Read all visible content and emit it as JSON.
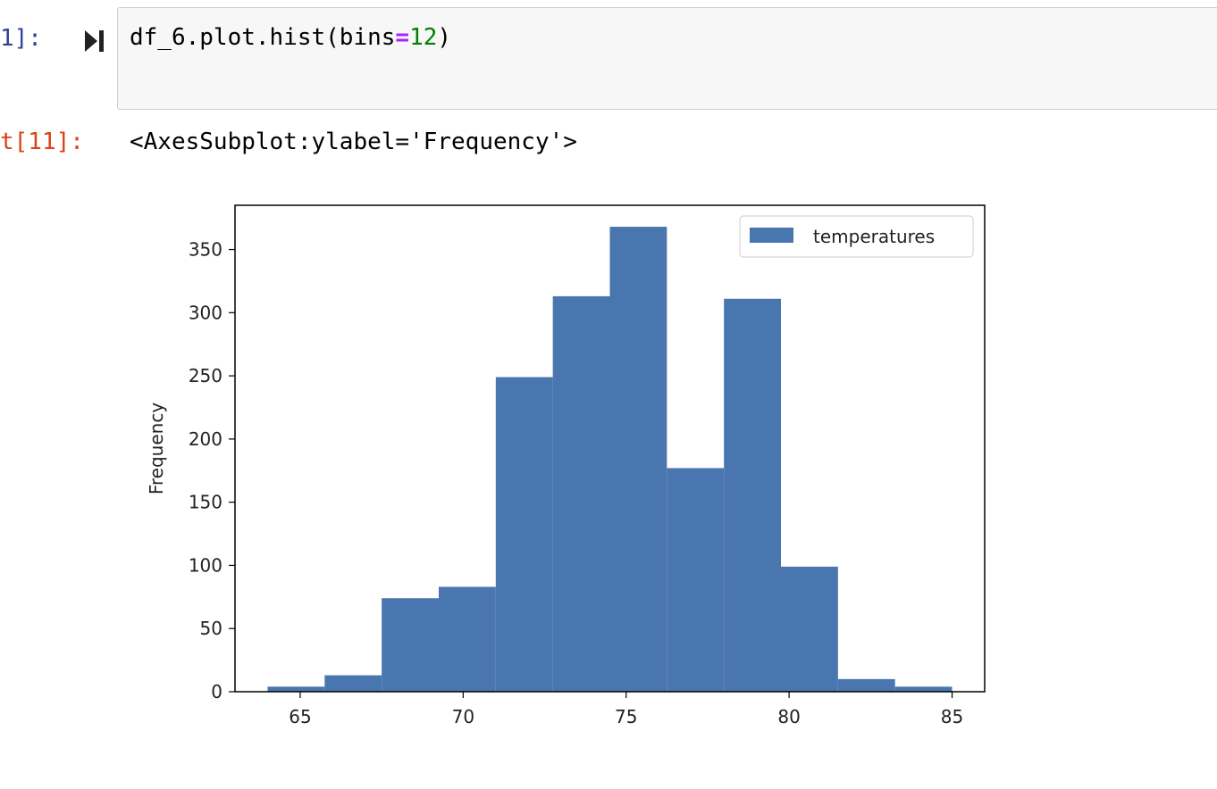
{
  "cell": {
    "in_prompt": "1]:",
    "code": {
      "prefix": "df_6.plot.hist(bins",
      "operator": "=",
      "number": "12",
      "suffix": ")"
    },
    "out_prompt": "t[11]:",
    "out_text": "<AxesSubplot:ylabel='Frequency'>"
  },
  "colors": {
    "bar": "#4a76b0",
    "in_prompt": "#303f9f",
    "out_prompt": "#d84315"
  },
  "chart_data": {
    "type": "bar",
    "ylabel": "Frequency",
    "xlim": [
      63.0,
      86.0
    ],
    "ylim": [
      0,
      385
    ],
    "xticks": [
      65,
      70,
      75,
      80,
      85
    ],
    "yticks": [
      0,
      50,
      100,
      150,
      200,
      250,
      300,
      350
    ],
    "bins": [
      [
        64.0,
        65.75,
        4
      ],
      [
        65.75,
        67.5,
        13
      ],
      [
        67.5,
        69.25,
        74
      ],
      [
        69.25,
        71.0,
        83
      ],
      [
        71.0,
        72.75,
        249
      ],
      [
        72.75,
        74.5,
        313
      ],
      [
        74.5,
        76.25,
        368
      ],
      [
        76.25,
        78.0,
        177
      ],
      [
        78.0,
        79.75,
        311
      ],
      [
        79.75,
        81.5,
        99
      ],
      [
        81.5,
        83.25,
        10
      ],
      [
        83.25,
        85.0,
        4
      ]
    ],
    "series": [
      {
        "name": "temperatures"
      }
    ],
    "legend_position": "top-right"
  }
}
